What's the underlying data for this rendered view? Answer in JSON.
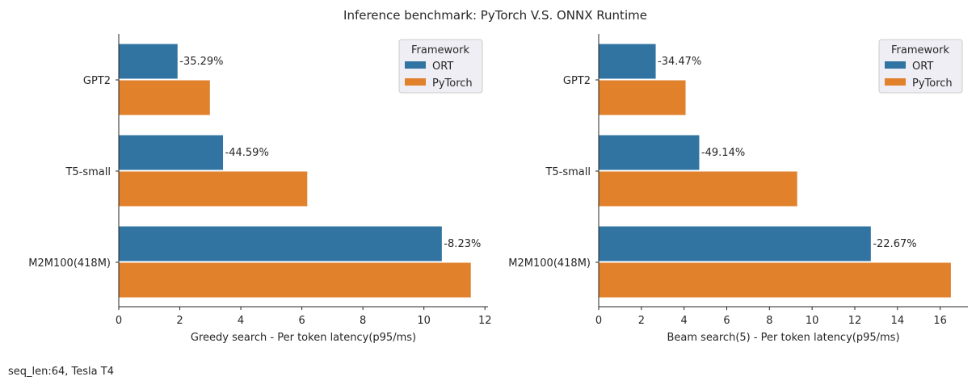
{
  "chart_data": [
    {
      "type": "bar",
      "orientation": "horizontal",
      "categories": [
        "GPT2",
        "T5-small",
        "M2M100(418M)"
      ],
      "series": [
        {
          "name": "ORT",
          "color": "#3274a1",
          "values": [
            1.94,
            3.43,
            10.6
          ]
        },
        {
          "name": "PyTorch",
          "color": "#e1812c",
          "values": [
            3.0,
            6.19,
            11.55
          ]
        }
      ],
      "annotations": [
        "-35.29%",
        "-44.59%",
        "-8.23%"
      ],
      "xlabel": "Greedy search - Per token latency(p95/ms)",
      "xlim": [
        0,
        12.1
      ],
      "xticks": [
        0,
        2,
        4,
        6,
        8,
        10,
        12
      ],
      "legend": {
        "title": "Framework",
        "placement": "top-right"
      }
    },
    {
      "type": "bar",
      "orientation": "horizontal",
      "categories": [
        "GPT2",
        "T5-small",
        "M2M100(418M)"
      ],
      "series": [
        {
          "name": "ORT",
          "color": "#3274a1",
          "values": [
            2.69,
            4.73,
            12.77
          ]
        },
        {
          "name": "PyTorch",
          "color": "#e1812c",
          "values": [
            4.09,
            9.32,
            16.52
          ]
        }
      ],
      "annotations": [
        "-34.47%",
        "-49.14%",
        "-22.67%"
      ],
      "xlabel": "Beam search(5) - Per token latency(p95/ms)",
      "xlim": [
        0,
        17.3
      ],
      "xticks": [
        0,
        2,
        4,
        6,
        8,
        10,
        12,
        14,
        16
      ],
      "legend": {
        "title": "Framework",
        "placement": "top-right"
      }
    }
  ],
  "title": "Inference benchmark: PyTorch V.S. ONNX Runtime",
  "footnote": "seq_len:64, Tesla T4"
}
